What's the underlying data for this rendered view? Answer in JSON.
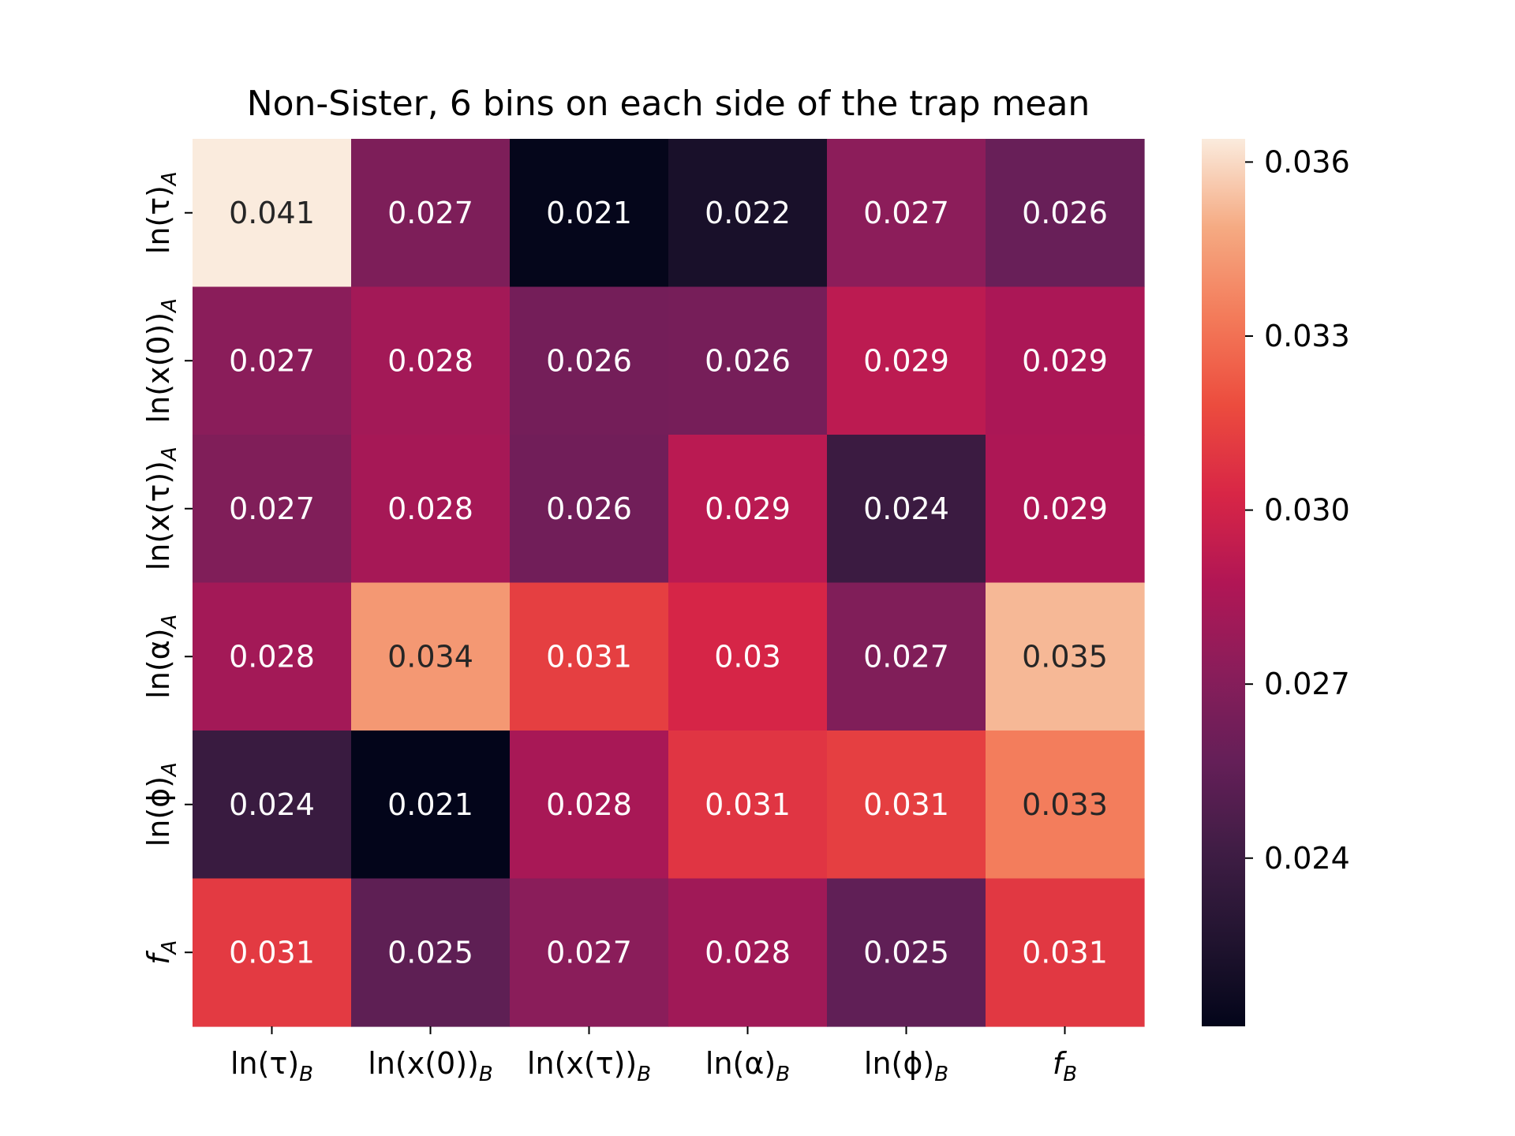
{
  "chart_data": {
    "type": "heatmap",
    "title": "Non-Sister, 6 bins on each side of the trap mean",
    "x_categories": [
      {
        "base": "ln(τ)",
        "sub": "B"
      },
      {
        "base": "ln(x(0))",
        "sub": "B"
      },
      {
        "base": "ln(x(τ))",
        "sub": "B"
      },
      {
        "base": "ln(α)",
        "sub": "B"
      },
      {
        "base": "ln(ϕ)",
        "sub": "B"
      },
      {
        "base": "f",
        "sub": "B"
      }
    ],
    "y_categories": [
      {
        "base": "ln(τ)",
        "sub": "A"
      },
      {
        "base": "ln(x(0))",
        "sub": "A"
      },
      {
        "base": "ln(x(τ))",
        "sub": "A"
      },
      {
        "base": "ln(α)",
        "sub": "A"
      },
      {
        "base": "ln(ϕ)",
        "sub": "A"
      },
      {
        "base": "f",
        "sub": "A"
      }
    ],
    "labels": [
      [
        "0.041",
        "0.027",
        "0.021",
        "0.022",
        "0.027",
        "0.026"
      ],
      [
        "0.027",
        "0.028",
        "0.026",
        "0.026",
        "0.029",
        "0.029"
      ],
      [
        "0.027",
        "0.028",
        "0.026",
        "0.029",
        "0.024",
        "0.029"
      ],
      [
        "0.028",
        "0.034",
        "0.031",
        "0.03",
        "0.027",
        "0.035"
      ],
      [
        "0.024",
        "0.021",
        "0.028",
        "0.031",
        "0.031",
        "0.033"
      ],
      [
        "0.031",
        "0.025",
        "0.027",
        "0.028",
        "0.025",
        "0.031"
      ]
    ],
    "values": [
      [
        0.041,
        0.0267,
        0.0212,
        0.0222,
        0.0273,
        0.0258
      ],
      [
        0.0272,
        0.0282,
        0.0263,
        0.0264,
        0.0292,
        0.0285
      ],
      [
        0.0268,
        0.0283,
        0.0262,
        0.0291,
        0.0239,
        0.0286
      ],
      [
        0.0282,
        0.0343,
        0.0313,
        0.0302,
        0.0268,
        0.0352
      ],
      [
        0.0238,
        0.0211,
        0.0284,
        0.0309,
        0.0313,
        0.0334
      ],
      [
        0.0311,
        0.0254,
        0.0272,
        0.0281,
        0.0255,
        0.031
      ]
    ],
    "color_range": [
      0.0211,
      0.0364
    ],
    "colorbar_ticks": [
      "0.036",
      "0.033",
      "0.030",
      "0.027",
      "0.024"
    ],
    "colormap": "rocket",
    "grid": false,
    "legend": "colorbar-right"
  }
}
